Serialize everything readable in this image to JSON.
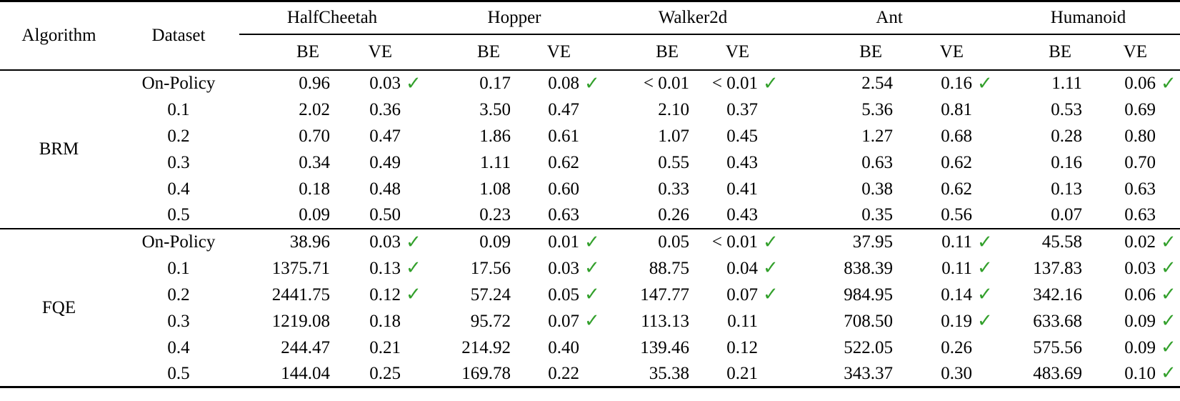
{
  "colors": {
    "check_green": "#33a02c",
    "text": "#000000",
    "background": "#ffffff"
  },
  "icons": {
    "check_glyph": "✓"
  },
  "table": {
    "col_headers": {
      "algorithm": "Algorithm",
      "dataset": "Dataset"
    },
    "env_groups": [
      "HalfCheetah",
      "Hopper",
      "Walker2d",
      "Ant",
      "Humanoid"
    ],
    "subheaders": {
      "be": "BE",
      "ve": "VE"
    },
    "sections": [
      {
        "algorithm": "BRM",
        "rows": [
          {
            "dataset": "On-Policy",
            "cells": [
              {
                "be": "0.96",
                "ve": "0.03",
                "check": true
              },
              {
                "be": "0.17",
                "ve": "0.08",
                "check": true
              },
              {
                "be": "< 0.01",
                "ve": "< 0.01",
                "check": true
              },
              {
                "be": "2.54",
                "ve": "0.16",
                "check": true
              },
              {
                "be": "1.11",
                "ve": "0.06",
                "check": true
              }
            ]
          },
          {
            "dataset": "0.1",
            "cells": [
              {
                "be": "2.02",
                "ve": "0.36",
                "check": false
              },
              {
                "be": "3.50",
                "ve": "0.47",
                "check": false
              },
              {
                "be": "2.10",
                "ve": "0.37",
                "check": false
              },
              {
                "be": "5.36",
                "ve": "0.81",
                "check": false
              },
              {
                "be": "0.53",
                "ve": "0.69",
                "check": false
              }
            ]
          },
          {
            "dataset": "0.2",
            "cells": [
              {
                "be": "0.70",
                "ve": "0.47",
                "check": false
              },
              {
                "be": "1.86",
                "ve": "0.61",
                "check": false
              },
              {
                "be": "1.07",
                "ve": "0.45",
                "check": false
              },
              {
                "be": "1.27",
                "ve": "0.68",
                "check": false
              },
              {
                "be": "0.28",
                "ve": "0.80",
                "check": false
              }
            ]
          },
          {
            "dataset": "0.3",
            "cells": [
              {
                "be": "0.34",
                "ve": "0.49",
                "check": false
              },
              {
                "be": "1.11",
                "ve": "0.62",
                "check": false
              },
              {
                "be": "0.55",
                "ve": "0.43",
                "check": false
              },
              {
                "be": "0.63",
                "ve": "0.62",
                "check": false
              },
              {
                "be": "0.16",
                "ve": "0.70",
                "check": false
              }
            ]
          },
          {
            "dataset": "0.4",
            "cells": [
              {
                "be": "0.18",
                "ve": "0.48",
                "check": false
              },
              {
                "be": "1.08",
                "ve": "0.60",
                "check": false
              },
              {
                "be": "0.33",
                "ve": "0.41",
                "check": false
              },
              {
                "be": "0.38",
                "ve": "0.62",
                "check": false
              },
              {
                "be": "0.13",
                "ve": "0.63",
                "check": false
              }
            ]
          },
          {
            "dataset": "0.5",
            "cells": [
              {
                "be": "0.09",
                "ve": "0.50",
                "check": false
              },
              {
                "be": "0.23",
                "ve": "0.63",
                "check": false
              },
              {
                "be": "0.26",
                "ve": "0.43",
                "check": false
              },
              {
                "be": "0.35",
                "ve": "0.56",
                "check": false
              },
              {
                "be": "0.07",
                "ve": "0.63",
                "check": false
              }
            ]
          }
        ]
      },
      {
        "algorithm": "FQE",
        "rows": [
          {
            "dataset": "On-Policy",
            "cells": [
              {
                "be": "38.96",
                "ve": "0.03",
                "check": true
              },
              {
                "be": "0.09",
                "ve": "0.01",
                "check": true
              },
              {
                "be": "0.05",
                "ve": "< 0.01",
                "check": true
              },
              {
                "be": "37.95",
                "ve": "0.11",
                "check": true
              },
              {
                "be": "45.58",
                "ve": "0.02",
                "check": true
              }
            ]
          },
          {
            "dataset": "0.1",
            "cells": [
              {
                "be": "1375.71",
                "ve": "0.13",
                "check": true
              },
              {
                "be": "17.56",
                "ve": "0.03",
                "check": true
              },
              {
                "be": "88.75",
                "ve": "0.04",
                "check": true
              },
              {
                "be": "838.39",
                "ve": "0.11",
                "check": true
              },
              {
                "be": "137.83",
                "ve": "0.03",
                "check": true
              }
            ]
          },
          {
            "dataset": "0.2",
            "cells": [
              {
                "be": "2441.75",
                "ve": "0.12",
                "check": true
              },
              {
                "be": "57.24",
                "ve": "0.05",
                "check": true
              },
              {
                "be": "147.77",
                "ve": "0.07",
                "check": true
              },
              {
                "be": "984.95",
                "ve": "0.14",
                "check": true
              },
              {
                "be": "342.16",
                "ve": "0.06",
                "check": true
              }
            ]
          },
          {
            "dataset": "0.3",
            "cells": [
              {
                "be": "1219.08",
                "ve": "0.18",
                "check": false
              },
              {
                "be": "95.72",
                "ve": "0.07",
                "check": true
              },
              {
                "be": "113.13",
                "ve": "0.11",
                "check": false
              },
              {
                "be": "708.50",
                "ve": "0.19",
                "check": true
              },
              {
                "be": "633.68",
                "ve": "0.09",
                "check": true
              }
            ]
          },
          {
            "dataset": "0.4",
            "cells": [
              {
                "be": "244.47",
                "ve": "0.21",
                "check": false
              },
              {
                "be": "214.92",
                "ve": "0.40",
                "check": false
              },
              {
                "be": "139.46",
                "ve": "0.12",
                "check": false
              },
              {
                "be": "522.05",
                "ve": "0.26",
                "check": false
              },
              {
                "be": "575.56",
                "ve": "0.09",
                "check": true
              }
            ]
          },
          {
            "dataset": "0.5",
            "cells": [
              {
                "be": "144.04",
                "ve": "0.25",
                "check": false
              },
              {
                "be": "169.78",
                "ve": "0.22",
                "check": false
              },
              {
                "be": "35.38",
                "ve": "0.21",
                "check": false
              },
              {
                "be": "343.37",
                "ve": "0.30",
                "check": false
              },
              {
                "be": "483.69",
                "ve": "0.10",
                "check": true
              }
            ]
          }
        ]
      }
    ]
  }
}
